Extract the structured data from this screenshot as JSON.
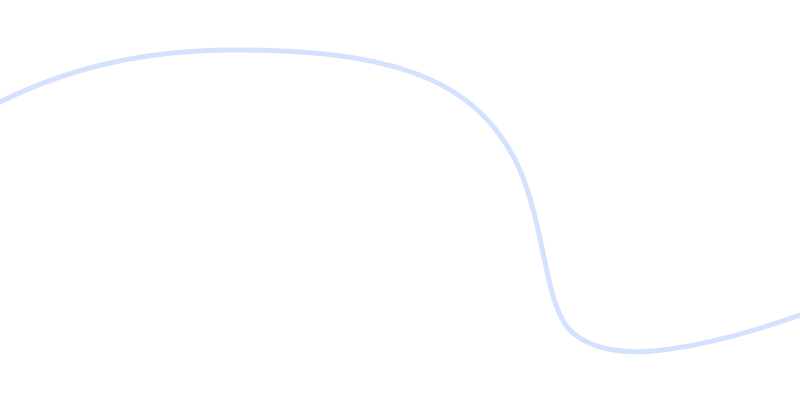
{
  "decoration": {
    "wave_color": "#d3e2ff"
  }
}
